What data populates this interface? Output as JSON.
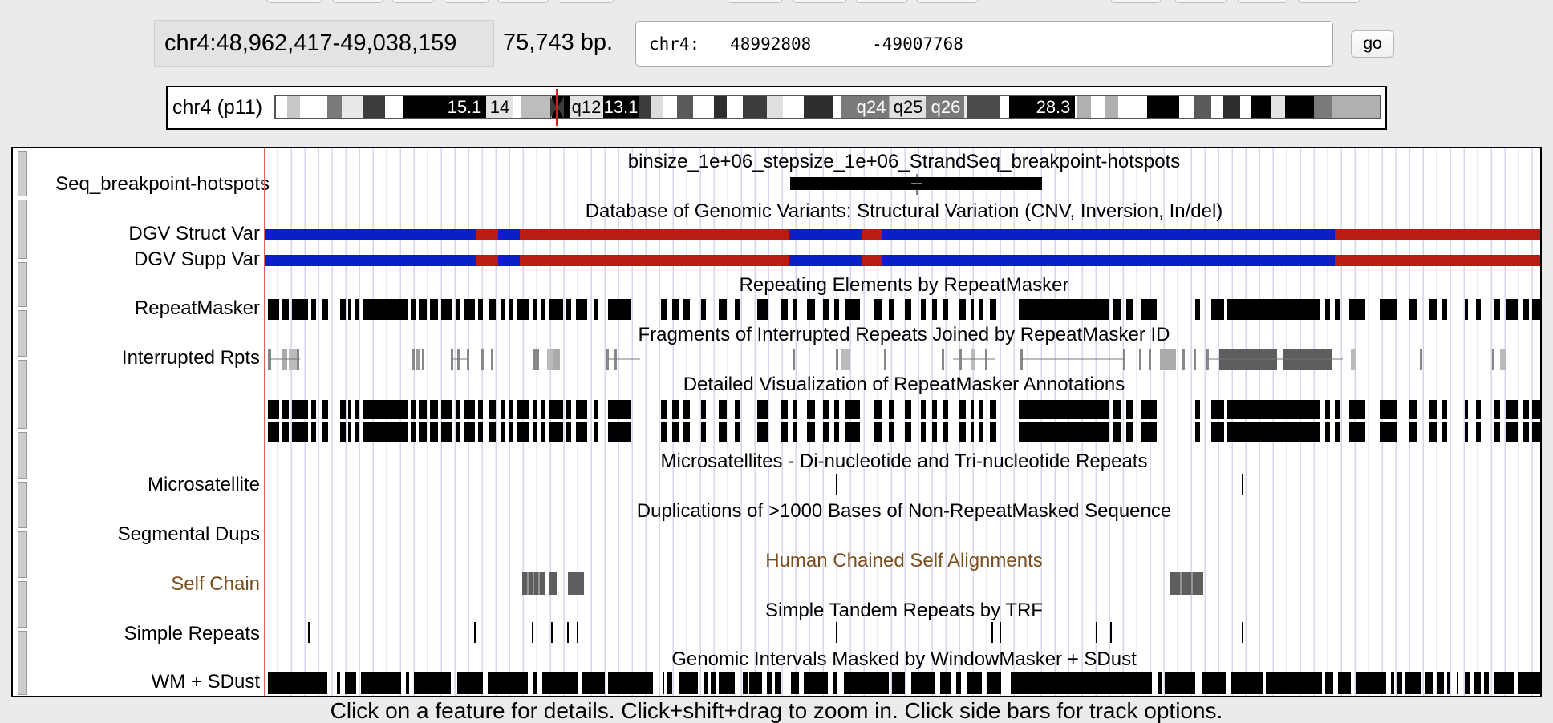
{
  "navigation": {
    "position_text": "chr4:48,962,417-49,038,159",
    "size_text": "75,743 bp.",
    "search_input_value": "chr4:   48992808      -49007768",
    "go_label": "go"
  },
  "ideogram": {
    "label": "chr4 (p11)",
    "band_labels": [
      "15.1",
      "14",
      "q12",
      "13.1",
      "q24",
      "q25",
      "q26",
      "28.3"
    ]
  },
  "tracks": [
    {
      "label": "Seq_breakpoint-hotspots",
      "title": "binsize_1e+06_stepsize_1e+06_StrandSeq_breakpoint-hotspots"
    },
    {
      "label": "DGV Struct Var",
      "title": "Database of Genomic Variants: Structural Variation (CNV, Inversion, In/del)"
    },
    {
      "label": "DGV Supp Var",
      "title": ""
    },
    {
      "label": "RepeatMasker",
      "title": "Repeating Elements by RepeatMasker"
    },
    {
      "label": "Interrupted Rpts",
      "title": "Fragments of Interrupted Repeats Joined by RepeatMasker ID"
    },
    {
      "label": "",
      "title": "Detailed Visualization of RepeatMasker Annotations"
    },
    {
      "label": "Microsatellite",
      "title": "Microsatellites - Di-nucleotide and Tri-nucleotide Repeats"
    },
    {
      "label": "Segmental Dups",
      "title": "Duplications of >1000 Bases of Non-RepeatMasked Sequence"
    },
    {
      "label": "Self Chain",
      "title": "Human Chained Self Alignments"
    },
    {
      "label": "Simple Repeats",
      "title": "Simple Tandem Repeats by TRF"
    },
    {
      "label": "WM + SDust",
      "title": "Genomic Intervals Masked by WindowMasker + SDust"
    }
  ],
  "footer": {
    "text": "Click on a feature for details. Click+shift+drag to zoom in. Click side bars for track options."
  },
  "colors": {
    "dgv_blue": "#0a1fc6",
    "dgv_red": "#b81c12",
    "self_chain_label": "#7a4e1e",
    "self_chain_title": "#7a4e1e",
    "position_marker": "#e01818"
  }
}
